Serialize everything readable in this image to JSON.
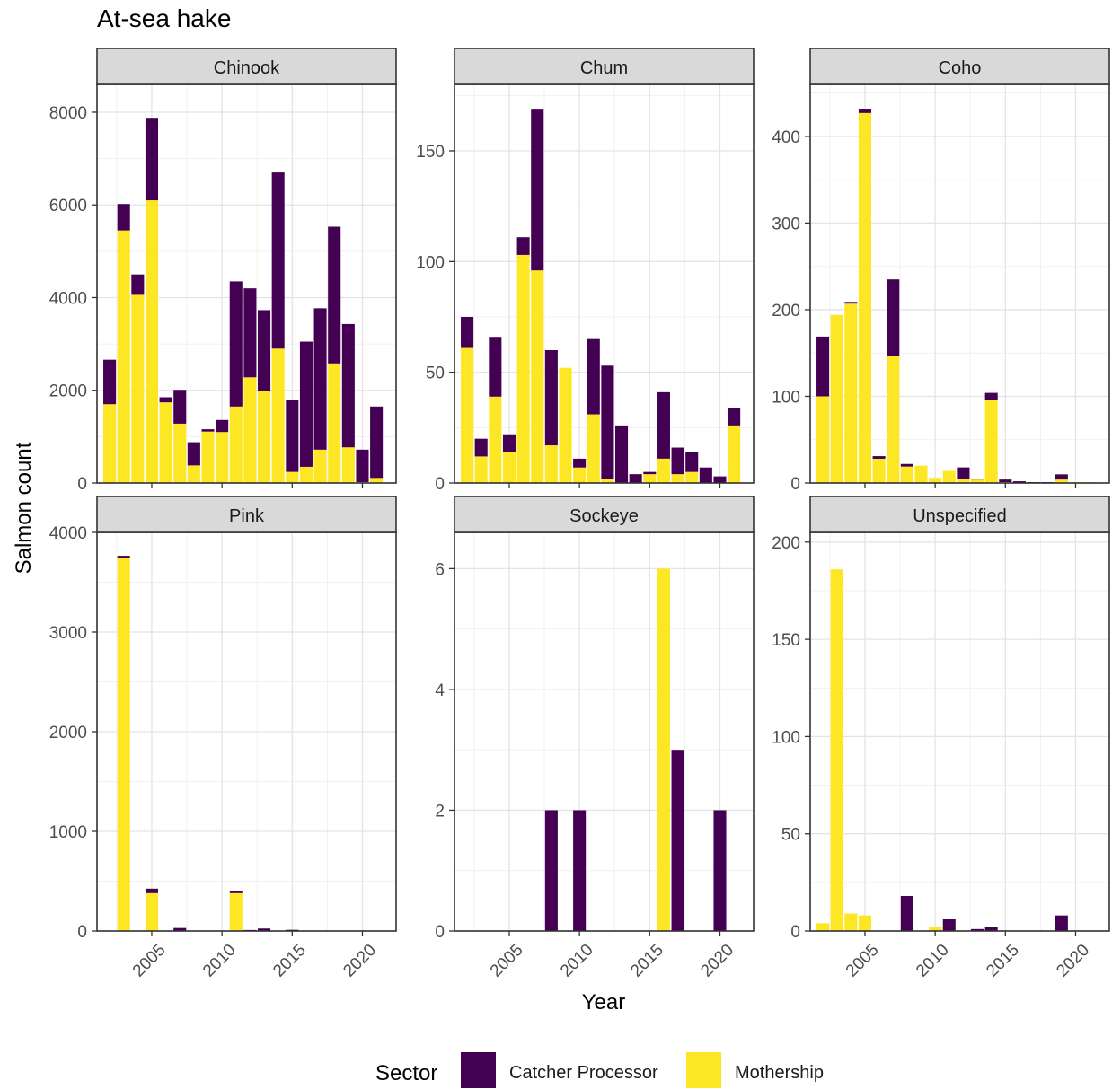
{
  "figure": {
    "title": "At-sea hake",
    "xlabel": "Year",
    "ylabel": "Salmon count"
  },
  "legend": {
    "title": "Sector",
    "placement": "bottom",
    "entries": [
      {
        "name": "Catcher Processor",
        "color": "#440154"
      },
      {
        "name": "Mothership",
        "color": "#FDE725"
      }
    ]
  },
  "chart_data": [
    {
      "type": "bar",
      "stacked": true,
      "title": "Chinook",
      "x": [
        2002,
        2003,
        2004,
        2005,
        2006,
        2007,
        2008,
        2009,
        2010,
        2011,
        2012,
        2013,
        2014,
        2015,
        2016,
        2017,
        2018,
        2019,
        2020,
        2021
      ],
      "series": [
        {
          "name": "Mothership",
          "values": [
            1700,
            5450,
            4060,
            6100,
            1740,
            1280,
            380,
            1110,
            1100,
            1650,
            2280,
            1980,
            2900,
            240,
            350,
            720,
            2580,
            770,
            20,
            110
          ]
        },
        {
          "name": "Catcher Processor",
          "values": [
            960,
            570,
            440,
            1780,
            110,
            730,
            500,
            50,
            260,
            2700,
            1920,
            1750,
            3800,
            1550,
            2700,
            3050,
            2950,
            2660,
            700,
            1540
          ]
        }
      ],
      "ylim": [
        0,
        8600
      ],
      "yticks": [
        0,
        2000,
        4000,
        6000,
        8000
      ],
      "xticks": [
        2005,
        2010,
        2015,
        2020
      ],
      "xlim": [
        2001.1,
        2022.4
      ]
    },
    {
      "type": "bar",
      "stacked": true,
      "title": "Chum",
      "x": [
        2002,
        2003,
        2004,
        2005,
        2006,
        2007,
        2008,
        2009,
        2010,
        2011,
        2012,
        2013,
        2014,
        2015,
        2016,
        2017,
        2018,
        2019,
        2020,
        2021
      ],
      "series": [
        {
          "name": "Mothership",
          "values": [
            61,
            12,
            39,
            14,
            103,
            96,
            17,
            52,
            7,
            31,
            2,
            0,
            0,
            4,
            11,
            4,
            5,
            0,
            0,
            26
          ]
        },
        {
          "name": "Catcher Processor",
          "values": [
            14,
            8,
            27,
            8,
            8,
            73,
            43,
            0,
            4,
            34,
            51,
            26,
            4,
            1,
            30,
            12,
            9,
            7,
            3,
            8
          ]
        }
      ],
      "ylim": [
        0,
        180
      ],
      "yticks": [
        0,
        50,
        100,
        150
      ],
      "xticks": [
        2005,
        2010,
        2015,
        2020
      ],
      "xlim": [
        2001.1,
        2022.4
      ]
    },
    {
      "type": "bar",
      "stacked": true,
      "title": "Coho",
      "x": [
        2002,
        2003,
        2004,
        2005,
        2006,
        2007,
        2008,
        2009,
        2010,
        2011,
        2012,
        2013,
        2014,
        2015,
        2016,
        2017,
        2018,
        2019,
        2020,
        2021
      ],
      "series": [
        {
          "name": "Mothership",
          "values": [
            100,
            194,
            207,
            427,
            28,
            147,
            19,
            20,
            6,
            14,
            5,
            4,
            96,
            1,
            0,
            0,
            0,
            4,
            1,
            1
          ]
        },
        {
          "name": "Catcher Processor",
          "values": [
            69,
            0,
            2,
            5,
            3,
            88,
            3,
            0,
            0,
            0,
            13,
            1,
            8,
            3,
            2,
            1,
            1,
            6,
            0,
            0
          ]
        }
      ],
      "ylim": [
        0,
        460
      ],
      "yticks": [
        0,
        100,
        200,
        300,
        400
      ],
      "xticks": [
        2005,
        2010,
        2015,
        2020
      ],
      "xlim": [
        2001.1,
        2022.4
      ]
    },
    {
      "type": "bar",
      "stacked": true,
      "title": "Pink",
      "x": [
        2003,
        2005,
        2007,
        2011,
        2012,
        2013,
        2015
      ],
      "series": [
        {
          "name": "Mothership",
          "values": [
            3740,
            380,
            0,
            380,
            0,
            0,
            0
          ]
        },
        {
          "name": "Catcher Processor",
          "values": [
            25,
            45,
            30,
            18,
            10,
            25,
            12
          ]
        }
      ],
      "ylim": [
        0,
        4000
      ],
      "yticks": [
        0,
        1000,
        2000,
        3000,
        4000
      ],
      "xticks": [
        2005,
        2010,
        2015,
        2020
      ],
      "xlim": [
        2001.1,
        2022.4
      ]
    },
    {
      "type": "bar",
      "stacked": true,
      "title": "Sockeye",
      "x": [
        2008,
        2010,
        2016,
        2017,
        2020
      ],
      "series": [
        {
          "name": "Mothership",
          "values": [
            0,
            0,
            6,
            0,
            0
          ]
        },
        {
          "name": "Catcher Processor",
          "values": [
            2,
            2,
            0,
            3,
            2
          ]
        }
      ],
      "ylim": [
        0,
        6.6
      ],
      "yticks": [
        0,
        2,
        4,
        6
      ],
      "xticks": [
        2005,
        2010,
        2015,
        2020
      ],
      "xlim": [
        2001.1,
        2022.4
      ]
    },
    {
      "type": "bar",
      "stacked": true,
      "title": "Unspecified",
      "x": [
        2002,
        2003,
        2004,
        2005,
        2008,
        2010,
        2011,
        2013,
        2014,
        2019
      ],
      "series": [
        {
          "name": "Mothership",
          "values": [
            4,
            186,
            9,
            8,
            0,
            2,
            0,
            0,
            0,
            0
          ]
        },
        {
          "name": "Catcher Processor",
          "values": [
            0,
            0,
            0,
            0,
            18,
            0,
            6,
            1,
            2,
            8
          ]
        }
      ],
      "ylim": [
        0,
        205
      ],
      "yticks": [
        0,
        50,
        100,
        150,
        200
      ],
      "xticks": [
        2005,
        2010,
        2015,
        2020
      ],
      "xlim": [
        2001.1,
        2022.4
      ]
    }
  ]
}
